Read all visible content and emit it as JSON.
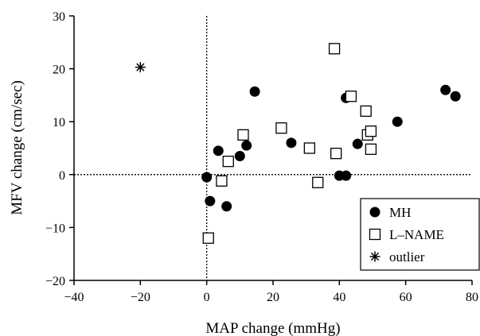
{
  "chart_data": {
    "type": "scatter",
    "title": "",
    "xlabel": "MAP change (mmHg)",
    "ylabel": "MFV change (cm/sec)",
    "xlim": [
      -40,
      80
    ],
    "ylim": [
      -20,
      30
    ],
    "xticks": [
      -40,
      -20,
      0,
      20,
      40,
      60,
      80
    ],
    "yticks": [
      -20,
      -10,
      0,
      10,
      20,
      30
    ],
    "grid": false,
    "reference_lines": {
      "x": 0,
      "y": 0,
      "style": "dotted"
    },
    "legend_position": "bottom-right",
    "series": [
      {
        "name": "MH",
        "marker": "filled-circle",
        "points": [
          [
            0,
            -0.5
          ],
          [
            1,
            -5
          ],
          [
            3.5,
            4.5
          ],
          [
            6,
            -6
          ],
          [
            10,
            3.5
          ],
          [
            12,
            5.5
          ],
          [
            14.5,
            15.7
          ],
          [
            25.5,
            6
          ],
          [
            40,
            -0.2
          ],
          [
            42,
            -0.2
          ],
          [
            42,
            14.5
          ],
          [
            45.5,
            5.8
          ],
          [
            57.5,
            10
          ],
          [
            72,
            16
          ],
          [
            75,
            14.8
          ]
        ]
      },
      {
        "name": "L–NAME",
        "marker": "open-square",
        "points": [
          [
            0.5,
            -12
          ],
          [
            4.5,
            -1.2
          ],
          [
            6.5,
            2.5
          ],
          [
            11,
            7.5
          ],
          [
            22.5,
            8.8
          ],
          [
            31,
            5
          ],
          [
            33.5,
            -1.5
          ],
          [
            38.5,
            23.8
          ],
          [
            39,
            4
          ],
          [
            43.5,
            14.8
          ],
          [
            48,
            12
          ],
          [
            48.5,
            7.5
          ],
          [
            49.5,
            8.2
          ],
          [
            49.5,
            4.8
          ]
        ]
      },
      {
        "name": "outlier",
        "marker": "asterisk",
        "points": [
          [
            -20,
            20.3
          ]
        ]
      }
    ]
  }
}
